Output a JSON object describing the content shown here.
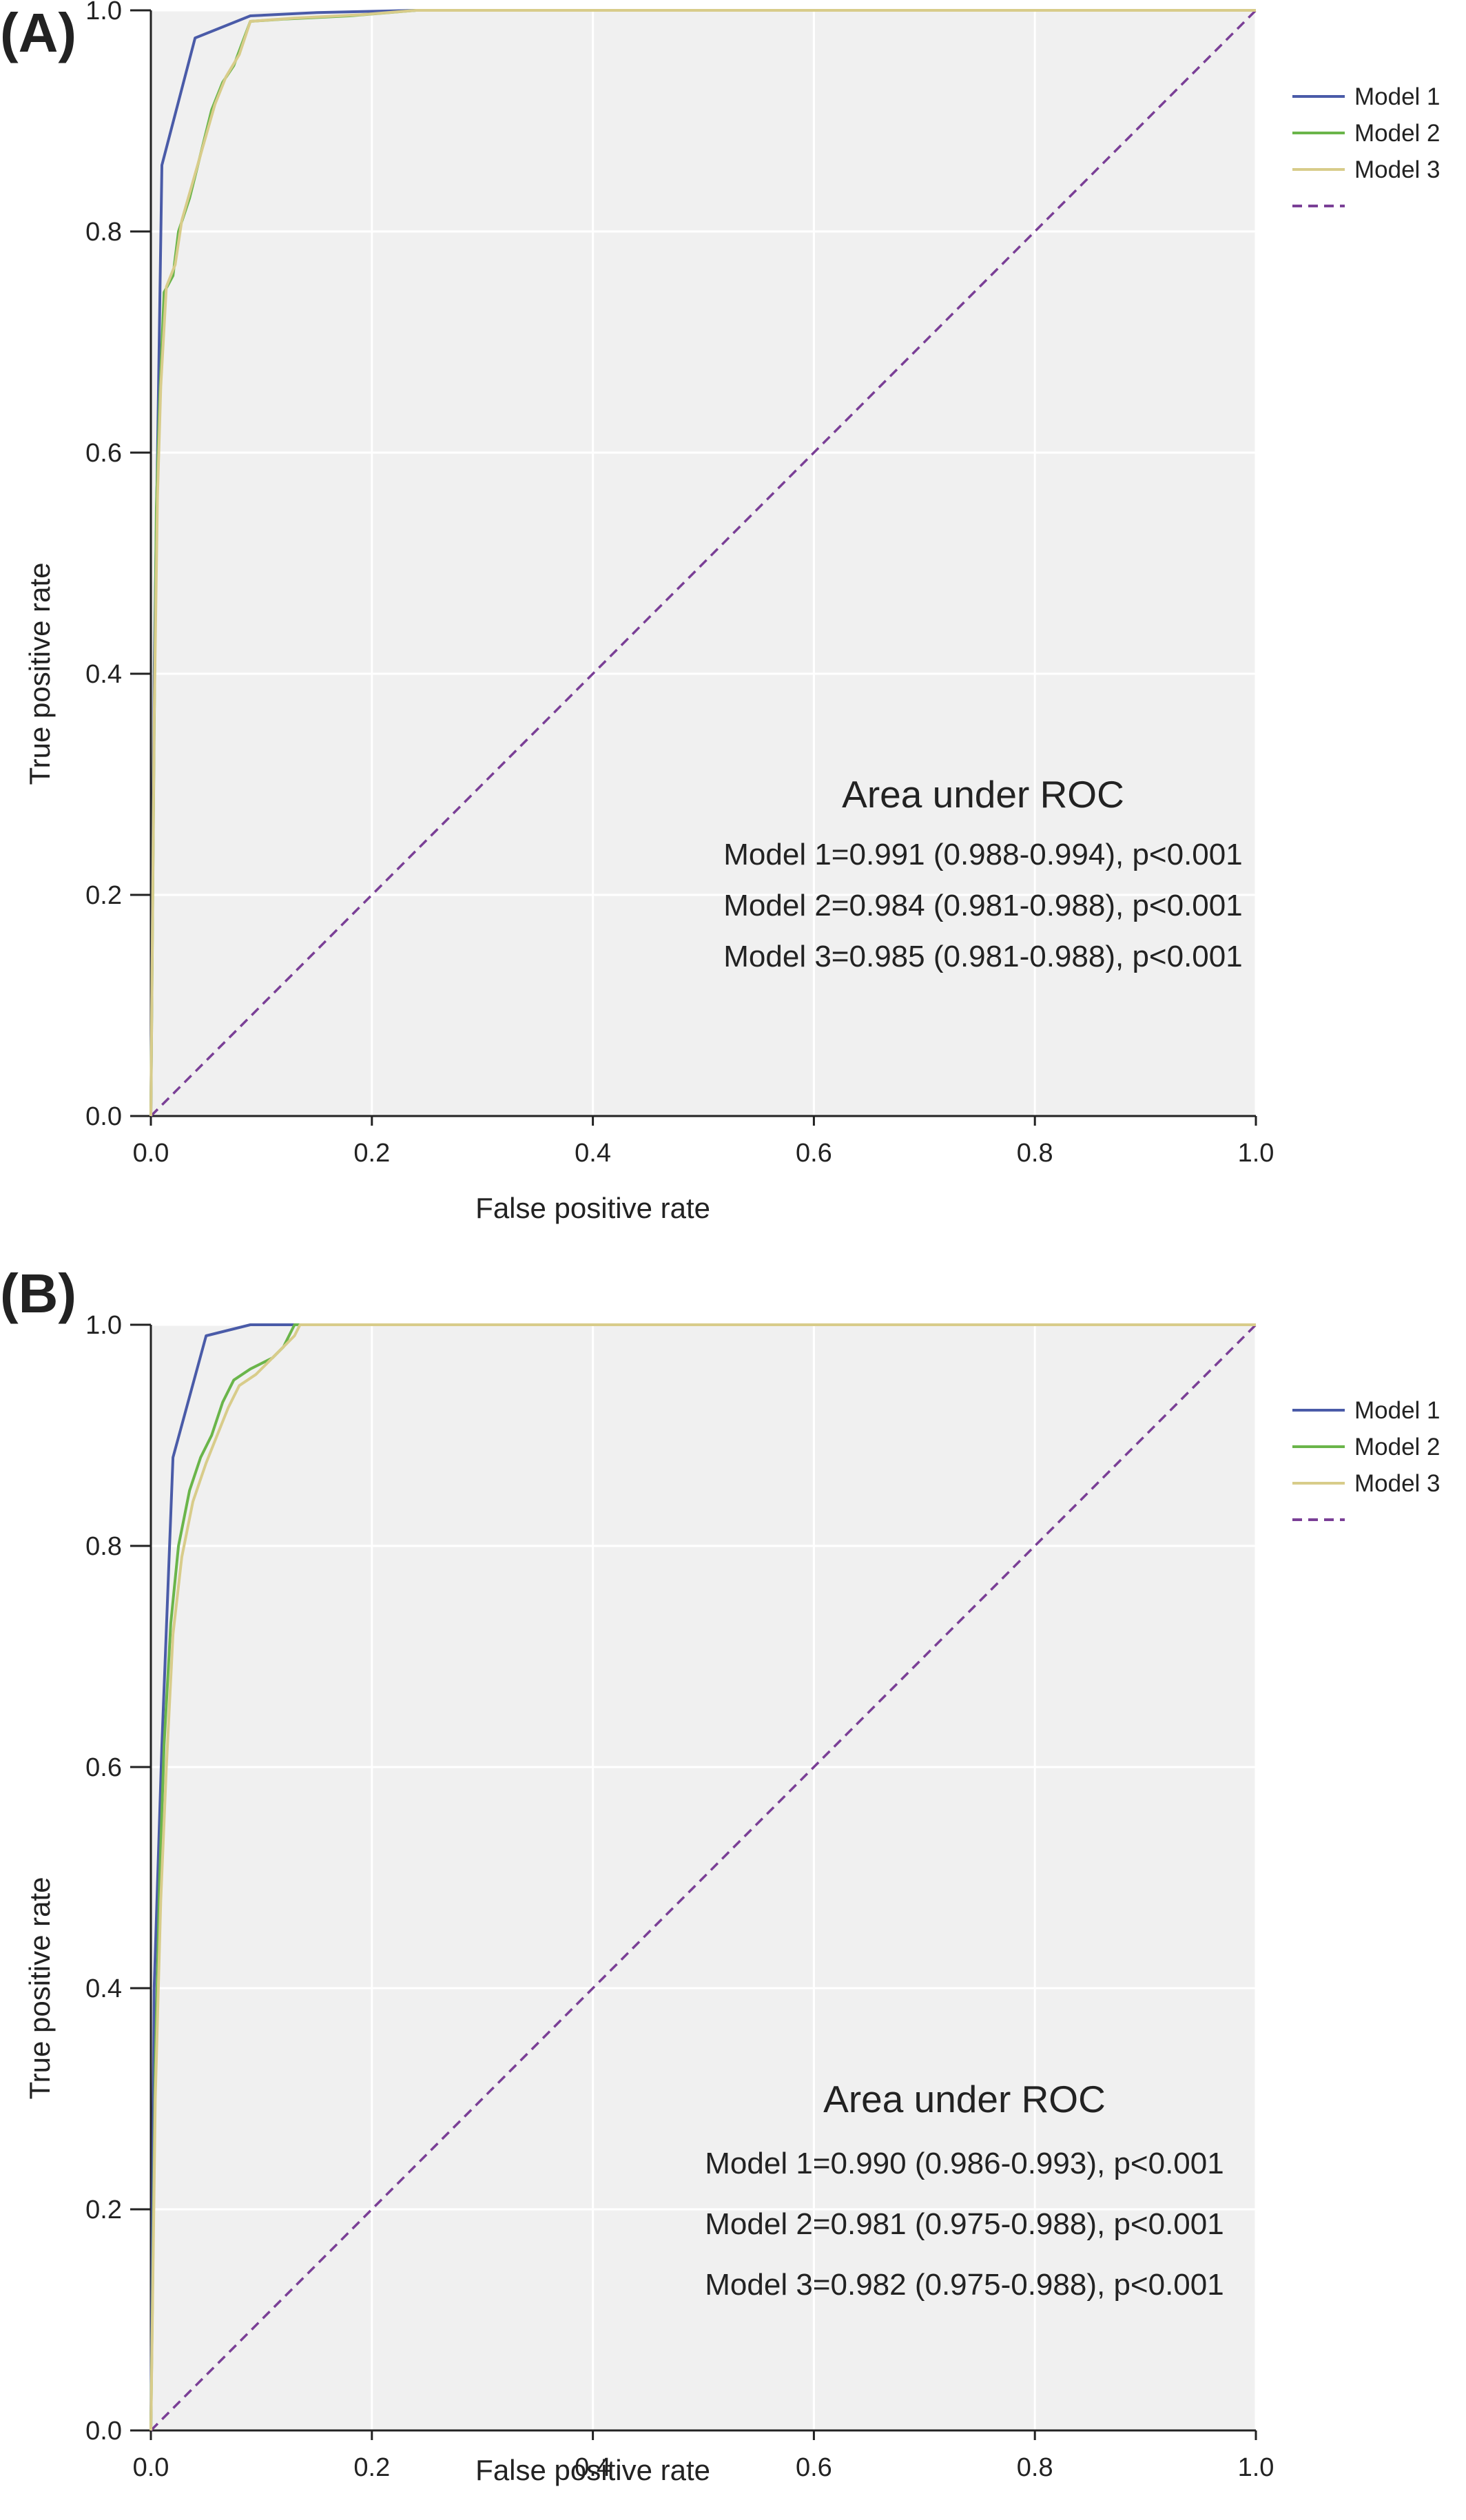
{
  "chart_data": [
    {
      "type": "line",
      "panel_label": "(A)",
      "xlabel": "False positive rate",
      "ylabel": "True positive rate",
      "xlim": [
        0,
        1
      ],
      "ylim": [
        0,
        1
      ],
      "xticks": [
        "0.0",
        "0.2",
        "0.4",
        "0.6",
        "0.8",
        "1.0"
      ],
      "yticks": [
        "0.0",
        "0.2",
        "0.4",
        "0.6",
        "0.8",
        "1.0"
      ],
      "grid": true,
      "legend_position": "right",
      "series": [
        {
          "name": "Model 1",
          "color": "#4a5ba8",
          "points": [
            [
              0,
              0
            ],
            [
              0.003,
              0.4
            ],
            [
              0.01,
              0.86
            ],
            [
              0.04,
              0.975
            ],
            [
              0.09,
              0.995
            ],
            [
              0.15,
              0.998
            ],
            [
              0.24,
              1.0
            ],
            [
              1.0,
              1.0
            ]
          ]
        },
        {
          "name": "Model 2",
          "color": "#6ab54a",
          "points": [
            [
              0,
              0
            ],
            [
              0.003,
              0.35
            ],
            [
              0.005,
              0.55
            ],
            [
              0.008,
              0.65
            ],
            [
              0.012,
              0.745
            ],
            [
              0.02,
              0.76
            ],
            [
              0.025,
              0.8
            ],
            [
              0.035,
              0.83
            ],
            [
              0.045,
              0.87
            ],
            [
              0.055,
              0.91
            ],
            [
              0.065,
              0.935
            ],
            [
              0.075,
              0.95
            ],
            [
              0.09,
              0.99
            ],
            [
              0.12,
              0.992
            ],
            [
              0.18,
              0.995
            ],
            [
              0.24,
              1.0
            ],
            [
              1.0,
              1.0
            ]
          ]
        },
        {
          "name": "Model 3",
          "color": "#d8cc8a",
          "points": [
            [
              0,
              0
            ],
            [
              0.003,
              0.36
            ],
            [
              0.006,
              0.56
            ],
            [
              0.009,
              0.66
            ],
            [
              0.014,
              0.75
            ],
            [
              0.022,
              0.77
            ],
            [
              0.028,
              0.81
            ],
            [
              0.038,
              0.845
            ],
            [
              0.048,
              0.88
            ],
            [
              0.058,
              0.915
            ],
            [
              0.068,
              0.94
            ],
            [
              0.08,
              0.96
            ],
            [
              0.09,
              0.99
            ],
            [
              0.13,
              0.993
            ],
            [
              0.19,
              0.996
            ],
            [
              0.24,
              1.0
            ],
            [
              1.0,
              1.0
            ]
          ]
        },
        {
          "name": "",
          "color": "#7a3f96",
          "dashed": true,
          "points": [
            [
              0,
              0
            ],
            [
              1,
              1
            ]
          ]
        }
      ],
      "annotation": {
        "title": "Area under ROC",
        "lines": [
          "Model 1=0.991 (0.988-0.994), p<0.001",
          "Model 2=0.984 (0.981-0.988), p<0.001",
          "Model 3=0.985 (0.981-0.988), p<0.001"
        ]
      }
    },
    {
      "type": "line",
      "panel_label": "(B)",
      "xlabel": "False positive rate",
      "ylabel": "True positive rate",
      "xlim": [
        0,
        1
      ],
      "ylim": [
        0,
        1
      ],
      "xticks": [
        "0.0",
        "0.2",
        "0.4",
        "0.6",
        "0.8",
        "1.0"
      ],
      "yticks": [
        "0.0",
        "0.2",
        "0.4",
        "0.6",
        "0.8",
        "1.0"
      ],
      "grid": true,
      "legend_position": "right",
      "series": [
        {
          "name": "Model 1",
          "color": "#4a5ba8",
          "points": [
            [
              0,
              0
            ],
            [
              0.003,
              0.4
            ],
            [
              0.01,
              0.62
            ],
            [
              0.02,
              0.88
            ],
            [
              0.05,
              0.99
            ],
            [
              0.09,
              1.0
            ],
            [
              1.0,
              1.0
            ]
          ]
        },
        {
          "name": "Model 2",
          "color": "#6ab54a",
          "points": [
            [
              0,
              0
            ],
            [
              0.004,
              0.33
            ],
            [
              0.008,
              0.5
            ],
            [
              0.012,
              0.62
            ],
            [
              0.018,
              0.73
            ],
            [
              0.025,
              0.8
            ],
            [
              0.035,
              0.85
            ],
            [
              0.045,
              0.88
            ],
            [
              0.055,
              0.9
            ],
            [
              0.065,
              0.93
            ],
            [
              0.075,
              0.95
            ],
            [
              0.09,
              0.96
            ],
            [
              0.11,
              0.97
            ],
            [
              0.12,
              0.98
            ],
            [
              0.13,
              1.0
            ],
            [
              1.0,
              1.0
            ]
          ]
        },
        {
          "name": "Model 3",
          "color": "#d8cc8a",
          "points": [
            [
              0,
              0
            ],
            [
              0.004,
              0.3
            ],
            [
              0.009,
              0.48
            ],
            [
              0.014,
              0.6
            ],
            [
              0.02,
              0.72
            ],
            [
              0.028,
              0.79
            ],
            [
              0.038,
              0.84
            ],
            [
              0.05,
              0.875
            ],
            [
              0.06,
              0.9
            ],
            [
              0.07,
              0.925
            ],
            [
              0.08,
              0.945
            ],
            [
              0.095,
              0.955
            ],
            [
              0.105,
              0.965
            ],
            [
              0.115,
              0.975
            ],
            [
              0.13,
              0.99
            ],
            [
              0.135,
              1.0
            ],
            [
              1.0,
              1.0
            ]
          ]
        },
        {
          "name": "",
          "color": "#7a3f96",
          "dashed": true,
          "points": [
            [
              0,
              0
            ],
            [
              1,
              1
            ]
          ]
        }
      ],
      "annotation": {
        "title": "Area under ROC",
        "lines": [
          "Model 1=0.990 (0.986-0.993), p<0.001",
          "Model 2=0.981 (0.975-0.988), p<0.001",
          "Model 3=0.982 (0.975-0.988), p<0.001"
        ]
      }
    }
  ]
}
